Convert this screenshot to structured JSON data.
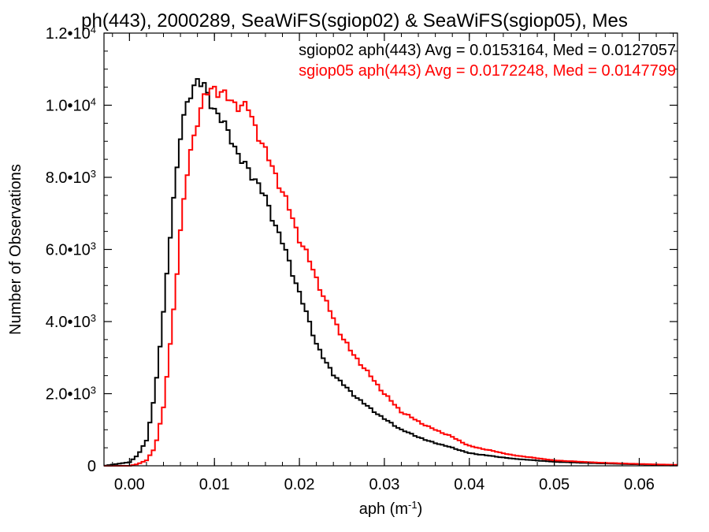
{
  "chart_data": {
    "type": "line",
    "title": "ph(443), 2000289, SeaWiFS(sgiop02) & SeaWiFS(sgiop05), Mes",
    "xlabel": {
      "base": "aph (m",
      "sup": "-1",
      "tail": ")"
    },
    "ylabel": "Number of Observations",
    "xlim": [
      -0.003,
      0.0645
    ],
    "ylim": [
      0,
      12000
    ],
    "x_ticks": [
      {
        "value": 0.0,
        "label": "0.00"
      },
      {
        "value": 0.01,
        "label": "0.01"
      },
      {
        "value": 0.02,
        "label": "0.02"
      },
      {
        "value": 0.03,
        "label": "0.03"
      },
      {
        "value": 0.04,
        "label": "0.04"
      },
      {
        "value": 0.05,
        "label": "0.05"
      },
      {
        "value": 0.06,
        "label": "0.06"
      }
    ],
    "y_ticks": [
      {
        "value": 0,
        "mantissa": "0",
        "exp": ""
      },
      {
        "value": 2000,
        "mantissa": "2.0•10",
        "exp": "3"
      },
      {
        "value": 4000,
        "mantissa": "4.0•10",
        "exp": "3"
      },
      {
        "value": 6000,
        "mantissa": "6.0•10",
        "exp": "3"
      },
      {
        "value": 8000,
        "mantissa": "8.0•10",
        "exp": "3"
      },
      {
        "value": 10000,
        "mantissa": "1.0•10",
        "exp": "4"
      },
      {
        "value": 12000,
        "mantissa": "1.2•10",
        "exp": "4"
      }
    ],
    "grid": false,
    "legend_position": "top-right",
    "series": [
      {
        "name": "sgiop02 aph(443) Avg = 0.0153164, Med = 0.0127057",
        "color": "#000000",
        "x": [
          -0.003,
          0.0,
          0.001,
          0.002,
          0.003,
          0.004,
          0.005,
          0.006,
          0.007,
          0.008,
          0.009,
          0.01,
          0.011,
          0.012,
          0.013,
          0.014,
          0.015,
          0.016,
          0.017,
          0.018,
          0.019,
          0.02,
          0.021,
          0.022,
          0.023,
          0.024,
          0.025,
          0.026,
          0.027,
          0.028,
          0.03,
          0.032,
          0.035,
          0.038,
          0.04,
          0.045,
          0.05,
          0.055,
          0.06,
          0.0645
        ],
        "values": [
          0,
          100,
          300,
          700,
          2000,
          4200,
          7000,
          9100,
          10300,
          10700,
          10400,
          9900,
          9500,
          9100,
          8500,
          8200,
          7900,
          7400,
          6800,
          6200,
          5500,
          4800,
          4100,
          3400,
          2900,
          2550,
          2300,
          2050,
          1850,
          1650,
          1300,
          1000,
          700,
          500,
          350,
          200,
          110,
          70,
          40,
          20
        ]
      },
      {
        "name": "sgiop05 aph(443) Avg = 0.0172248, Med = 0.0147799",
        "color": "#ff0000",
        "x": [
          -0.003,
          0.0,
          0.001,
          0.002,
          0.003,
          0.004,
          0.005,
          0.006,
          0.007,
          0.008,
          0.009,
          0.01,
          0.011,
          0.012,
          0.013,
          0.014,
          0.015,
          0.016,
          0.017,
          0.018,
          0.019,
          0.02,
          0.021,
          0.022,
          0.023,
          0.024,
          0.025,
          0.026,
          0.027,
          0.028,
          0.03,
          0.032,
          0.035,
          0.038,
          0.04,
          0.045,
          0.05,
          0.055,
          0.06,
          0.0645
        ],
        "values": [
          0,
          0,
          50,
          150,
          500,
          1600,
          3800,
          6500,
          8500,
          9600,
          10300,
          10500,
          10300,
          10100,
          10000,
          9900,
          9300,
          8700,
          8200,
          7600,
          7000,
          6300,
          5800,
          5200,
          4600,
          4100,
          3600,
          3200,
          2900,
          2600,
          2000,
          1500,
          1100,
          800,
          550,
          300,
          150,
          90,
          50,
          25
        ]
      }
    ]
  }
}
